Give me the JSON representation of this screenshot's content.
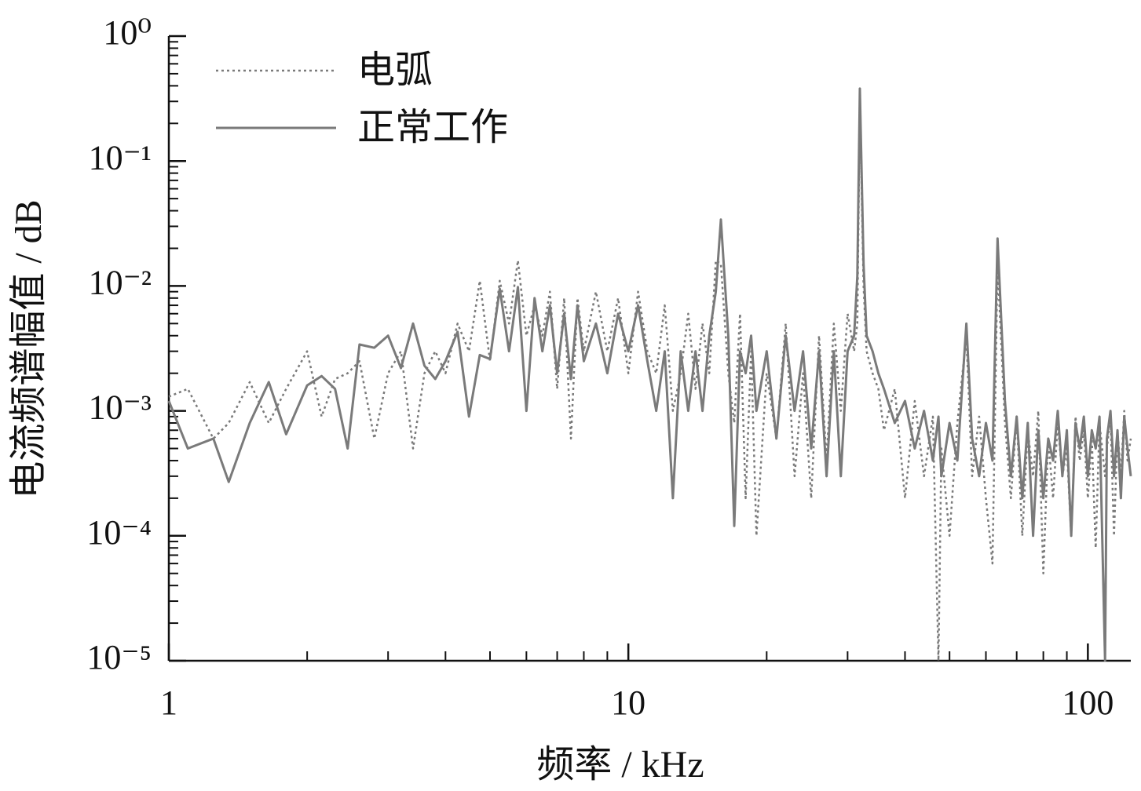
{
  "chart_data": {
    "type": "line",
    "x_label": "频率 / kHz",
    "y_label": "电流频谱幅值 / dB",
    "x_scale": "log",
    "y_scale": "log",
    "grid": false,
    "legend": "upper left",
    "xlim": [
      1,
      124
    ],
    "xticks": [
      1,
      10,
      100
    ],
    "ylim": [
      1e-05,
      1
    ],
    "yticks": [
      {
        "value": 1e-05,
        "label": "10⁻⁵"
      },
      {
        "value": 0.0001,
        "label": "10⁻⁴"
      },
      {
        "value": 0.001,
        "label": "10⁻³"
      },
      {
        "value": 0.01,
        "label": "10⁻²"
      },
      {
        "value": 0.1,
        "label": "10⁻¹"
      },
      {
        "value": 1,
        "label": "10⁰"
      }
    ],
    "x": [
      1,
      1.1,
      1.25,
      1.35,
      1.5,
      1.65,
      1.8,
      2,
      2.15,
      2.3,
      2.45,
      2.6,
      2.8,
      3,
      3.2,
      3.4,
      3.6,
      3.8,
      4,
      4.25,
      4.5,
      4.75,
      5,
      5.25,
      5.5,
      5.75,
      6,
      6.25,
      6.5,
      6.75,
      7,
      7.25,
      7.5,
      7.75,
      8,
      8.5,
      9,
      9.5,
      10,
      10.5,
      11,
      11.5,
      12,
      12.5,
      13,
      13.5,
      14,
      14.5,
      15,
      15.5,
      15.9,
      16.5,
      17,
      17.5,
      18,
      18.5,
      19,
      20,
      21,
      22,
      23,
      24,
      25,
      26,
      27,
      28,
      29,
      30,
      31,
      31.5,
      31.9,
      32.5,
      33,
      34,
      35,
      36,
      38,
      40,
      42,
      44,
      46,
      47.3,
      48,
      50,
      52,
      54.4,
      56,
      58,
      60,
      62,
      63.6,
      66,
      68,
      70,
      72,
      74,
      76,
      78,
      80,
      82,
      84,
      86,
      88,
      90,
      92,
      94,
      96,
      98,
      100,
      102,
      104,
      106,
      109,
      110,
      112,
      114,
      116,
      118,
      120,
      122,
      124
    ],
    "series": [
      {
        "name": "电弧",
        "color": "#7a7a7a",
        "style": "dotted",
        "values": [
          0.0013,
          0.0015,
          0.0006,
          0.0008,
          0.0017,
          0.0008,
          0.0015,
          0.003,
          0.0009,
          0.0018,
          0.002,
          0.0025,
          0.0006,
          0.002,
          0.003,
          0.0005,
          0.002,
          0.003,
          0.002,
          0.005,
          0.003,
          0.011,
          0.0025,
          0.011,
          0.005,
          0.016,
          0.004,
          0.007,
          0.004,
          0.009,
          0.0015,
          0.008,
          0.0006,
          0.008,
          0.003,
          0.009,
          0.003,
          0.008,
          0.002,
          0.009,
          0.003,
          0.002,
          0.007,
          0.001,
          0.002,
          0.006,
          0.0015,
          0.005,
          0.002,
          0.016,
          0.015,
          0.002,
          0.0008,
          0.006,
          0.0002,
          0.003,
          0.0001,
          0.002,
          0.0006,
          0.005,
          0.0003,
          0.002,
          0.0002,
          0.004,
          0.0004,
          0.005,
          0.001,
          0.006,
          0.003,
          0.005,
          0.3,
          0.01,
          0.003,
          0.002,
          0.0015,
          0.0007,
          0.0015,
          0.0002,
          0.0012,
          0.0003,
          0.0009,
          1e-05,
          0.0005,
          0.0001,
          0.0008,
          0.004,
          0.0003,
          0.0009,
          0.0002,
          6e-05,
          0.015,
          0.0008,
          0.0002,
          0.0009,
          0.0001,
          0.0007,
          0.0003,
          0.001,
          5e-05,
          0.0006,
          0.0002,
          0.0008,
          0.0003,
          0.0005,
          0.0001,
          0.0009,
          0.0004,
          0.0007,
          0.0002,
          0.0006,
          8e-05,
          0.0008,
          0.0003,
          0.0005,
          0.0009,
          0.0001,
          0.0007,
          0.0003,
          0.001,
          0.0004,
          0.0006
        ]
      },
      {
        "name": "正常工作",
        "color": "#7a7a7a",
        "style": "solid",
        "values": [
          0.0012,
          0.0005,
          0.0006,
          0.00027,
          0.0008,
          0.0017,
          0.00065,
          0.0016,
          0.0019,
          0.0015,
          0.0005,
          0.0034,
          0.0032,
          0.004,
          0.0022,
          0.005,
          0.0023,
          0.0018,
          0.0025,
          0.0043,
          0.0009,
          0.0028,
          0.0026,
          0.0095,
          0.003,
          0.0098,
          0.001,
          0.008,
          0.003,
          0.007,
          0.002,
          0.006,
          0.0018,
          0.007,
          0.0025,
          0.005,
          0.002,
          0.006,
          0.003,
          0.007,
          0.0025,
          0.001,
          0.003,
          0.0002,
          0.003,
          0.001,
          0.003,
          0.001,
          0.004,
          0.009,
          0.034,
          0.004,
          0.00012,
          0.003,
          0.002,
          0.004,
          0.001,
          0.003,
          0.0006,
          0.004,
          0.001,
          0.003,
          0.0005,
          0.003,
          0.0003,
          0.003,
          0.0003,
          0.003,
          0.004,
          0.012,
          0.38,
          0.015,
          0.004,
          0.003,
          0.002,
          0.0015,
          0.0008,
          0.0012,
          0.0005,
          0.001,
          0.0004,
          0.0009,
          0.0003,
          0.0008,
          0.0004,
          0.005,
          0.0006,
          0.0003,
          0.0008,
          0.0004,
          0.024,
          0.0012,
          0.0003,
          0.0009,
          0.0002,
          0.0008,
          0.0001,
          0.0007,
          0.0002,
          0.0006,
          0.0004,
          0.001,
          0.0003,
          0.0007,
          0.0001,
          0.0008,
          0.0005,
          0.0009,
          0.0003,
          0.0007,
          0.0005,
          0.0009,
          1e-05,
          0.0006,
          0.001,
          0.0003,
          0.0007,
          0.0002,
          0.0009,
          0.0005,
          0.0003
        ]
      }
    ]
  }
}
